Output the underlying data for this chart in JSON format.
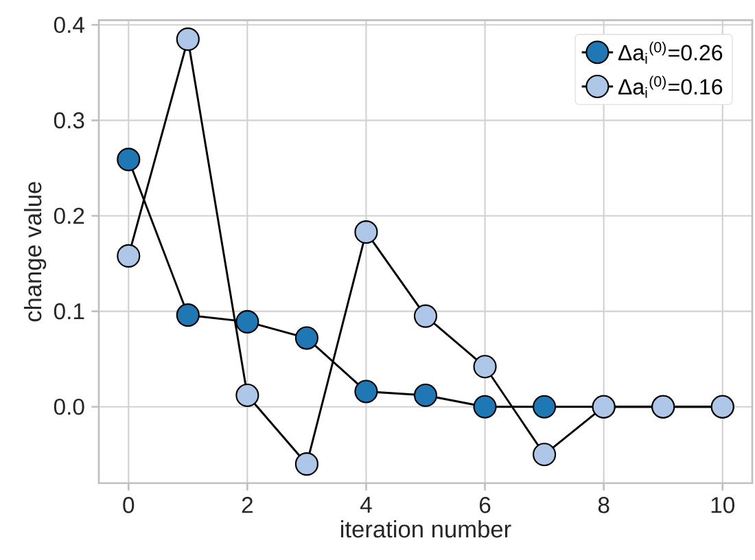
{
  "chart_data": {
    "type": "line",
    "xlabel": "iteration number",
    "ylabel": "change value",
    "x": [
      0,
      1,
      2,
      3,
      4,
      5,
      6,
      7,
      8,
      9,
      10
    ],
    "series": [
      {
        "name": "Δa$_{i}$$^{(0)}$=0.26",
        "color": "#1f77b4",
        "values": [
          0.259,
          0.096,
          0.089,
          0.072,
          0.016,
          0.012,
          0.0,
          0.0,
          0.0,
          0.0,
          0.0
        ]
      },
      {
        "name": "Δa$_{i}$$^{(0)}$=0.16",
        "color": "#aec7e8",
        "values": [
          0.158,
          0.385,
          0.012,
          -0.06,
          0.183,
          0.095,
          0.042,
          -0.05,
          0.0,
          0.0,
          0.0
        ]
      }
    ],
    "xlim": [
      -0.5,
      10.5
    ],
    "ylim": [
      -0.08,
      0.405
    ],
    "xticks": [
      0,
      2,
      4,
      6,
      8,
      10
    ],
    "yticks": [
      {
        "value": 0.0,
        "label": "0.0"
      },
      0.1,
      0.2,
      0.3,
      0.4
    ],
    "grid": true,
    "legend": "top right",
    "marker": "circle",
    "line_style": "solid"
  }
}
